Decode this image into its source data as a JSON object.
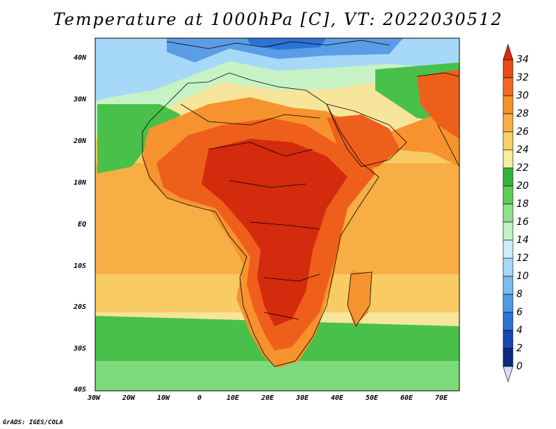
{
  "title": "Temperature at 1000hPa [C], VT: 2022030512",
  "y_axis_labels": [
    "40N",
    "30N",
    "20N",
    "10N",
    "EQ",
    "10S",
    "20S",
    "30S",
    "40S"
  ],
  "x_axis_labels": [
    "30W",
    "20W",
    "10W",
    "0",
    "10E",
    "20E",
    "30E",
    "40E",
    "50E",
    "60E",
    "70E"
  ],
  "colorbar": {
    "labels": [
      "34",
      "32",
      "30",
      "28",
      "26",
      "24",
      "22",
      "20",
      "18",
      "16",
      "14",
      "12",
      "10",
      "8",
      "6",
      "4",
      "2",
      "0"
    ],
    "colors": [
      "#de2a0e",
      "#e84a18",
      "#f06a22",
      "#f6902c",
      "#f8b040",
      "#f8d268",
      "#f6ef9c",
      "#34b33c",
      "#5ccf56",
      "#8ee38a",
      "#c4f2c4",
      "#cfeefc",
      "#a6d8f8",
      "#78bcf2",
      "#4e9be8",
      "#2c74d4",
      "#1848b0",
      "#0c2a82",
      "#081670"
    ]
  },
  "credit": "GrADS: IGES/COLA",
  "regions": {
    "hot": "#d42a0e",
    "warm": "#ef5f1c",
    "orange": "#f6932e",
    "ocean_warm": "#f7ae45",
    "ocean_mild": "#f8cc62",
    "ocean_pale": "#f5e596",
    "green": "#49c04a",
    "green_light": "#7cd97c",
    "mint": "#c7f3c4",
    "cool_blue": "#8ecaf4",
    "cold_blue": "#5a9de6"
  }
}
